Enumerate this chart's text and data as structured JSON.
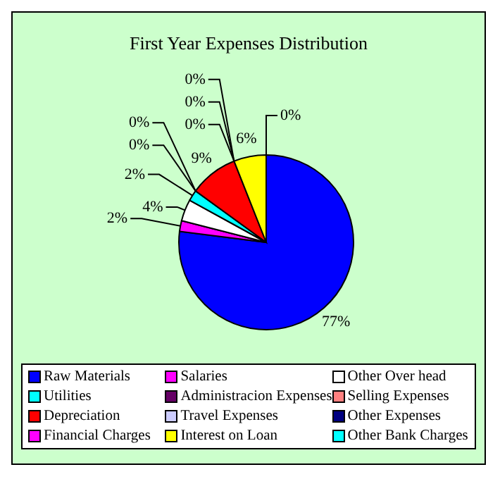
{
  "chart_data": {
    "type": "pie",
    "title": "First Year Expenses Distribution",
    "categories": [
      "Raw Materials",
      "Salaries",
      "Other Over head",
      "Utilities",
      "Administracion Expenses",
      "Selling Expenses",
      "Depreciation",
      "Travel Expenses",
      "Other Expenses",
      "Financial Charges",
      "Interest on Loan",
      "Other Bank Charges"
    ],
    "values": [
      77,
      2,
      4,
      2,
      0,
      0,
      9,
      0,
      0,
      0,
      6,
      0
    ],
    "value_labels": [
      "77%",
      "2%",
      "4%",
      "2%",
      "0%",
      "0%",
      "9%",
      "0%",
      "0%",
      "0%",
      "6%",
      "0%"
    ],
    "colors": [
      "#0000ff",
      "#ff00ff",
      "#ffffff",
      "#00ffff",
      "#660066",
      "#ff8080",
      "#ff0000",
      "#ccccff",
      "#000080",
      "#ff00ff",
      "#ffff00",
      "#00ffff"
    ],
    "legend": "bottom"
  }
}
